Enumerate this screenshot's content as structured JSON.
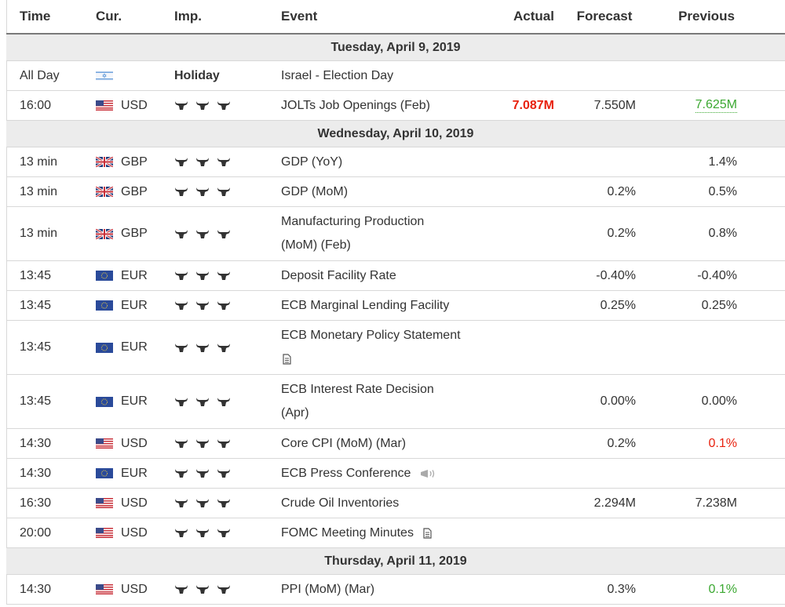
{
  "headers": {
    "time": "Time",
    "currency": "Cur.",
    "importance": "Imp.",
    "event": "Event",
    "actual": "Actual",
    "forecast": "Forecast",
    "previous": "Previous"
  },
  "dates": {
    "d1": "Tuesday, April 9, 2019",
    "d2": "Wednesday, April 10, 2019",
    "d3": "Thursday, April 11, 2019"
  },
  "rows": [
    {
      "time": "All Day",
      "currency": "",
      "flag": "israel-flag-icon",
      "importance": "Holiday",
      "event": "Israel - Election Day",
      "actual": "",
      "forecast": "",
      "previous": ""
    },
    {
      "time": "16:00",
      "currency": "USD",
      "flag": "us-flag-icon",
      "importance_bulls": 3,
      "event": "JOLTs Job Openings (Feb)",
      "actual": "7.087M",
      "forecast": "7.550M",
      "previous": "7.625M"
    },
    {
      "time": "13 min",
      "currency": "GBP",
      "flag": "uk-flag-icon",
      "importance_bulls": 3,
      "event": "GDP (YoY)",
      "actual": "",
      "forecast": "",
      "previous": "1.4%"
    },
    {
      "time": "13 min",
      "currency": "GBP",
      "flag": "uk-flag-icon",
      "importance_bulls": 3,
      "event": "GDP (MoM)",
      "actual": "",
      "forecast": "0.2%",
      "previous": "0.5%"
    },
    {
      "time": "13 min",
      "currency": "GBP",
      "flag": "uk-flag-icon",
      "importance_bulls": 3,
      "event_line1": "Manufacturing Production",
      "event_line2": "(MoM) (Feb)",
      "actual": "",
      "forecast": "0.2%",
      "previous": "0.8%"
    },
    {
      "time": "13:45",
      "currency": "EUR",
      "flag": "eu-flag-icon",
      "importance_bulls": 3,
      "event": "Deposit Facility Rate",
      "actual": "",
      "forecast": "-0.40%",
      "previous": "-0.40%"
    },
    {
      "time": "13:45",
      "currency": "EUR",
      "flag": "eu-flag-icon",
      "importance_bulls": 3,
      "event": "ECB Marginal Lending Facility",
      "actual": "",
      "forecast": "0.25%",
      "previous": "0.25%"
    },
    {
      "time": "13:45",
      "currency": "EUR",
      "flag": "eu-flag-icon",
      "importance_bulls": 3,
      "event_line1": "ECB Monetary Policy Statement",
      "event_icon": "document-icon",
      "actual": "",
      "forecast": "",
      "previous": ""
    },
    {
      "time": "13:45",
      "currency": "EUR",
      "flag": "eu-flag-icon",
      "importance_bulls": 3,
      "event_line1": "ECB Interest Rate Decision",
      "event_line2": "(Apr)",
      "actual": "",
      "forecast": "0.00%",
      "previous": "0.00%"
    },
    {
      "time": "14:30",
      "currency": "USD",
      "flag": "us-flag-icon",
      "importance_bulls": 3,
      "event": "Core CPI (MoM) (Mar)",
      "actual": "",
      "forecast": "0.2%",
      "previous": "0.1%"
    },
    {
      "time": "14:30",
      "currency": "EUR",
      "flag": "eu-flag-icon",
      "importance_bulls": 3,
      "event": "ECB Press Conference",
      "event_icon": "speaker-icon",
      "actual": "",
      "forecast": "",
      "previous": ""
    },
    {
      "time": "16:30",
      "currency": "USD",
      "flag": "us-flag-icon",
      "importance_bulls": 3,
      "event": "Crude Oil Inventories",
      "actual": "",
      "forecast": "2.294M",
      "previous": "7.238M"
    },
    {
      "time": "20:00",
      "currency": "USD",
      "flag": "us-flag-icon",
      "importance_bulls": 3,
      "event": "FOMC Meeting Minutes",
      "event_icon": "document-icon",
      "actual": "",
      "forecast": "",
      "previous": ""
    },
    {
      "time": "14:30",
      "currency": "USD",
      "flag": "us-flag-icon",
      "importance_bulls": 3,
      "event": "PPI (MoM) (Mar)",
      "actual": "",
      "forecast": "0.3%",
      "previous": "0.1%"
    }
  ],
  "colors": {
    "negative": "#e8210e",
    "positive": "#3ba831",
    "date_row_bg": "#ececec",
    "border": "#d8d8d8"
  }
}
